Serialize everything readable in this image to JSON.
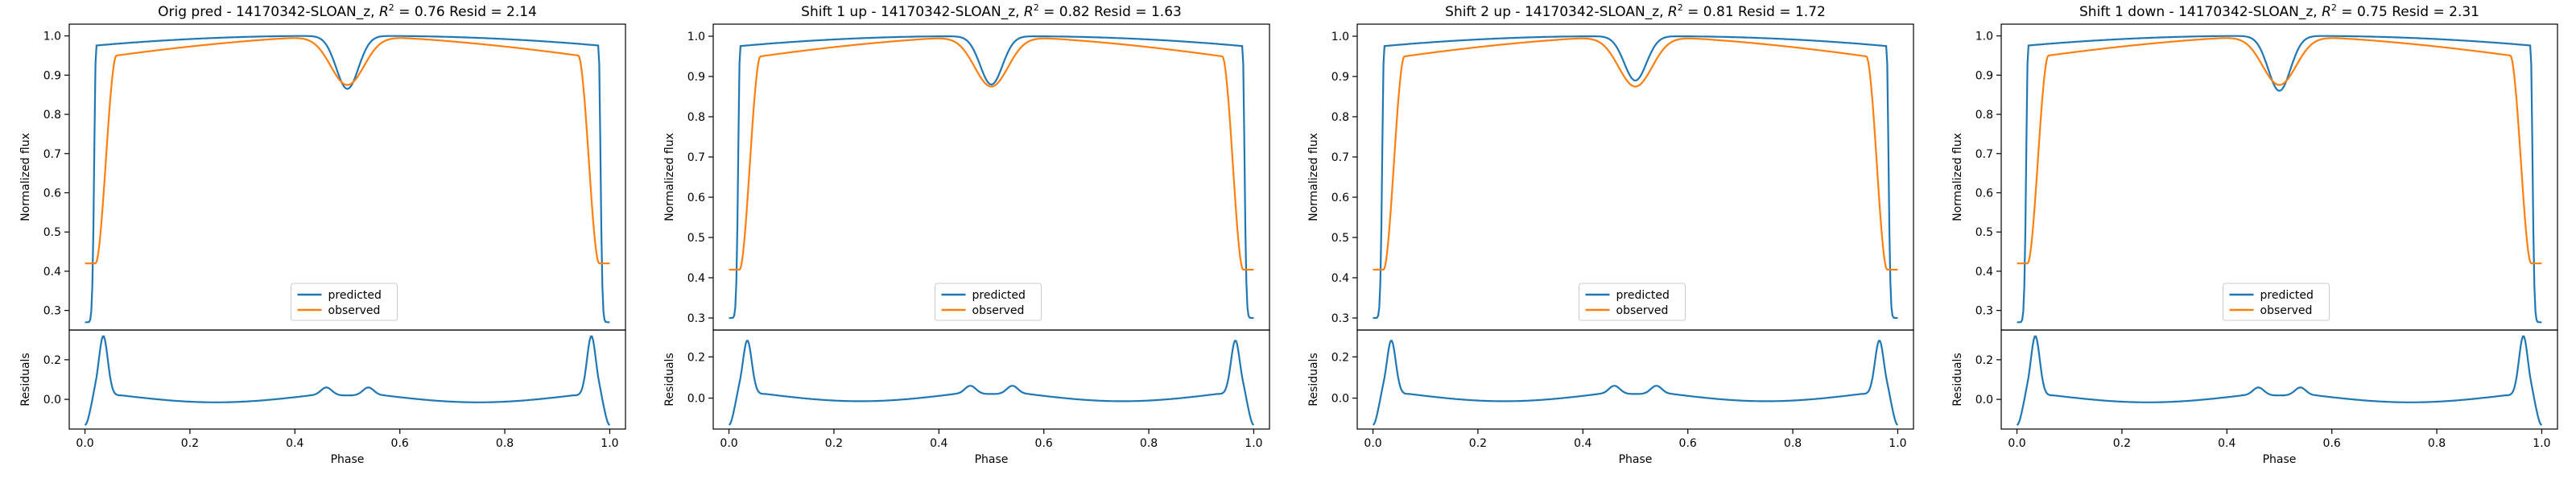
{
  "chart_data": [
    {
      "type": "line",
      "title": "Orig pred - 14170342-SLOAN_z, ",
      "title_r2": "0.76",
      "title_resid": "2.14",
      "ylabel_top": "Normalized flux",
      "ylabel_bottom": "Residuals",
      "xlabel": "Phase",
      "xlim": [
        -0.03,
        1.03
      ],
      "ylim_top": [
        0.25,
        1.03
      ],
      "ylim_bottom": [
        -0.15,
        0.35
      ],
      "yticks_top": [
        "0.3",
        "0.4",
        "0.5",
        "0.6",
        "0.7",
        "0.8",
        "0.9",
        "1.0"
      ],
      "yticks_bottom": [
        "0.0",
        "0.2"
      ],
      "xticks": [
        "0.0",
        "0.2",
        "0.4",
        "0.6",
        "0.8",
        "1.0"
      ],
      "legend": [
        "predicted",
        "observed"
      ],
      "colors": {
        "predicted": "#1f77b4",
        "observed": "#ff7f0e"
      },
      "predicted": {
        "depth1": 0.73,
        "depth2": 0.135,
        "plateau_edge": 0.973
      },
      "observed": {
        "depth1": 0.58,
        "depth2": 0.125,
        "plateau_edge": 0.95
      },
      "residual_peak": 0.32,
      "residual_min": -0.13
    },
    {
      "type": "line",
      "title": "Shift 1 up - 14170342-SLOAN_z, ",
      "title_r2": "0.82",
      "title_resid": "1.63",
      "ylabel_top": "Normalized flux",
      "ylabel_bottom": "Residuals",
      "xlabel": "Phase",
      "xlim": [
        -0.03,
        1.03
      ],
      "ylim_top": [
        0.27,
        1.03
      ],
      "ylim_bottom": [
        -0.15,
        0.33
      ],
      "yticks_top": [
        "0.3",
        "0.4",
        "0.5",
        "0.6",
        "0.7",
        "0.8",
        "0.9",
        "1.0"
      ],
      "yticks_bottom": [
        "0.0",
        "0.2"
      ],
      "xticks": [
        "0.0",
        "0.2",
        "0.4",
        "0.6",
        "0.8",
        "1.0"
      ],
      "legend": [
        "predicted",
        "observed"
      ],
      "colors": {
        "predicted": "#1f77b4",
        "observed": "#ff7f0e"
      },
      "predicted": {
        "depth1": 0.7,
        "depth2": 0.12,
        "plateau_edge": 0.973
      },
      "observed": {
        "depth1": 0.58,
        "depth2": 0.125,
        "plateau_edge": 0.95
      },
      "residual_peak": 0.28,
      "residual_min": -0.13
    },
    {
      "type": "line",
      "title": "Shift 2 up - 14170342-SLOAN_z, ",
      "title_r2": "0.81",
      "title_resid": "1.72",
      "ylabel_top": "Normalized flux",
      "ylabel_bottom": "Residuals",
      "xlabel": "Phase",
      "xlim": [
        -0.03,
        1.03
      ],
      "ylim_top": [
        0.27,
        1.03
      ],
      "ylim_bottom": [
        -0.15,
        0.33
      ],
      "yticks_top": [
        "0.3",
        "0.4",
        "0.5",
        "0.6",
        "0.7",
        "0.8",
        "0.9",
        "1.0"
      ],
      "yticks_bottom": [
        "0.0",
        "0.2"
      ],
      "xticks": [
        "0.0",
        "0.2",
        "0.4",
        "0.6",
        "0.8",
        "1.0"
      ],
      "legend": [
        "predicted",
        "observed"
      ],
      "colors": {
        "predicted": "#1f77b4",
        "observed": "#ff7f0e"
      },
      "predicted": {
        "depth1": 0.7,
        "depth2": 0.11,
        "plateau_edge": 0.973
      },
      "observed": {
        "depth1": 0.58,
        "depth2": 0.125,
        "plateau_edge": 0.95
      },
      "residual_peak": 0.28,
      "residual_min": -0.13
    },
    {
      "type": "line",
      "title": "Shift 1 down - 14170342-SLOAN_z, ",
      "title_r2": "0.75",
      "title_resid": "2.31",
      "ylabel_top": "Normalized flux",
      "ylabel_bottom": "Residuals",
      "xlabel": "Phase",
      "xlim": [
        -0.03,
        1.03
      ],
      "ylim_top": [
        0.25,
        1.03
      ],
      "ylim_bottom": [
        -0.15,
        0.35
      ],
      "yticks_top": [
        "0.3",
        "0.4",
        "0.5",
        "0.6",
        "0.7",
        "0.8",
        "0.9",
        "1.0"
      ],
      "yticks_bottom": [
        "0.0",
        "0.2"
      ],
      "xticks": [
        "0.0",
        "0.2",
        "0.4",
        "0.6",
        "0.8",
        "1.0"
      ],
      "legend": [
        "predicted",
        "observed"
      ],
      "colors": {
        "predicted": "#1f77b4",
        "observed": "#ff7f0e"
      },
      "predicted": {
        "depth1": 0.73,
        "depth2": 0.14,
        "plateau_edge": 0.973
      },
      "observed": {
        "depth1": 0.58,
        "depth2": 0.125,
        "plateau_edge": 0.95
      },
      "residual_peak": 0.32,
      "residual_min": -0.13
    }
  ]
}
